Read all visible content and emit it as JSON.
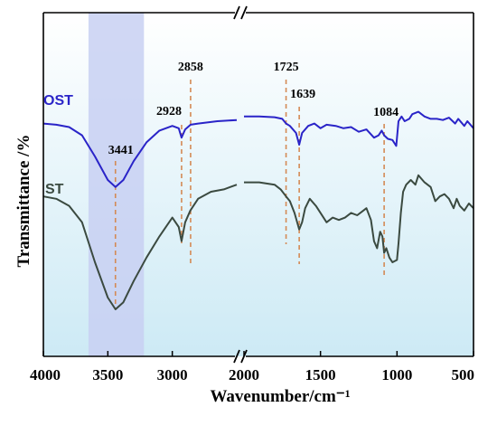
{
  "chart_data": {
    "type": "line",
    "xlabel": "Wavenumber/cm⁻¹",
    "ylabel": "Transmittance /%",
    "x_ticks": [
      4000,
      3500,
      3000,
      2000,
      1500,
      1000,
      500
    ],
    "x_segments": [
      {
        "from": 4000,
        "to": 2500
      },
      {
        "from": 2000,
        "to": 500
      }
    ],
    "axis_break": "between 2500 and 2000",
    "y_ticks": "none",
    "grid": false,
    "highlight_band": {
      "from": 3650,
      "to": 3220,
      "color": "#c8d0f2"
    },
    "background_gradient": {
      "top": "#ffffff",
      "bottom": "#cdeaf5"
    },
    "colors": {
      "OST": "#2a24c8",
      "ST": "#3b4a40",
      "peak_line": "#d48a55"
    },
    "peaks": [
      {
        "x": 3441,
        "label": "3441"
      },
      {
        "x": 2928,
        "label": "2928"
      },
      {
        "x": 2858,
        "label": "2858"
      },
      {
        "x": 1725,
        "label": "1725"
      },
      {
        "x": 1639,
        "label": "1639"
      },
      {
        "x": 1084,
        "label": "1084"
      }
    ],
    "series": [
      {
        "name": "OST",
        "label": "OST",
        "points": [
          [
            4000,
            16
          ],
          [
            3900,
            16.5
          ],
          [
            3800,
            17.5
          ],
          [
            3700,
            21
          ],
          [
            3600,
            30
          ],
          [
            3500,
            40
          ],
          [
            3441,
            43
          ],
          [
            3380,
            40
          ],
          [
            3300,
            32
          ],
          [
            3200,
            24
          ],
          [
            3100,
            19
          ],
          [
            3000,
            17
          ],
          [
            2950,
            18
          ],
          [
            2928,
            22
          ],
          [
            2900,
            18.5
          ],
          [
            2858,
            16.5
          ],
          [
            2800,
            16
          ],
          [
            2650,
            15
          ],
          [
            2500,
            14.5
          ],
          [
            2000,
            13
          ],
          [
            1900,
            13
          ],
          [
            1800,
            13.3
          ],
          [
            1750,
            14
          ],
          [
            1725,
            16
          ],
          [
            1700,
            17
          ],
          [
            1660,
            20
          ],
          [
            1639,
            25
          ],
          [
            1620,
            20
          ],
          [
            1580,
            17
          ],
          [
            1540,
            16
          ],
          [
            1500,
            18
          ],
          [
            1460,
            16.5
          ],
          [
            1400,
            17
          ],
          [
            1350,
            18
          ],
          [
            1300,
            17.5
          ],
          [
            1250,
            19.5
          ],
          [
            1200,
            18.5
          ],
          [
            1150,
            22
          ],
          [
            1120,
            21
          ],
          [
            1100,
            19
          ],
          [
            1084,
            21
          ],
          [
            1060,
            22.5
          ],
          [
            1030,
            23
          ],
          [
            1005,
            25.5
          ],
          [
            990,
            15
          ],
          [
            970,
            13
          ],
          [
            950,
            15
          ],
          [
            920,
            14
          ],
          [
            900,
            12
          ],
          [
            860,
            11
          ],
          [
            820,
            13
          ],
          [
            780,
            14
          ],
          [
            740,
            14
          ],
          [
            700,
            14.5
          ],
          [
            660,
            13.5
          ],
          [
            620,
            16
          ],
          [
            600,
            14
          ],
          [
            560,
            17
          ],
          [
            540,
            15
          ],
          [
            500,
            18
          ]
        ]
      },
      {
        "name": "ST",
        "label": "ST",
        "points": [
          [
            4000,
            47
          ],
          [
            3900,
            48
          ],
          [
            3800,
            51
          ],
          [
            3700,
            58
          ],
          [
            3600,
            75
          ],
          [
            3500,
            90
          ],
          [
            3441,
            95
          ],
          [
            3380,
            92
          ],
          [
            3300,
            83
          ],
          [
            3200,
            73
          ],
          [
            3100,
            64
          ],
          [
            3000,
            56
          ],
          [
            2950,
            60
          ],
          [
            2928,
            66
          ],
          [
            2900,
            58
          ],
          [
            2860,
            53
          ],
          [
            2800,
            48
          ],
          [
            2700,
            45
          ],
          [
            2600,
            44
          ],
          [
            2500,
            42
          ],
          [
            2000,
            41
          ],
          [
            1900,
            41
          ],
          [
            1800,
            42
          ],
          [
            1760,
            44
          ],
          [
            1725,
            47
          ],
          [
            1700,
            49
          ],
          [
            1670,
            54
          ],
          [
            1639,
            61
          ],
          [
            1620,
            58
          ],
          [
            1600,
            52
          ],
          [
            1570,
            48
          ],
          [
            1530,
            51
          ],
          [
            1500,
            54
          ],
          [
            1460,
            58
          ],
          [
            1420,
            56
          ],
          [
            1380,
            57
          ],
          [
            1340,
            56
          ],
          [
            1300,
            54
          ],
          [
            1260,
            55
          ],
          [
            1220,
            53
          ],
          [
            1200,
            52
          ],
          [
            1170,
            57
          ],
          [
            1150,
            66
          ],
          [
            1130,
            69
          ],
          [
            1110,
            62
          ],
          [
            1095,
            64
          ],
          [
            1084,
            71
          ],
          [
            1070,
            69
          ],
          [
            1050,
            73
          ],
          [
            1030,
            75
          ],
          [
            1000,
            74
          ],
          [
            990,
            67
          ],
          [
            975,
            54
          ],
          [
            960,
            45
          ],
          [
            940,
            42
          ],
          [
            910,
            40
          ],
          [
            880,
            42
          ],
          [
            860,
            38
          ],
          [
            820,
            41
          ],
          [
            780,
            43
          ],
          [
            750,
            49
          ],
          [
            720,
            47
          ],
          [
            690,
            46
          ],
          [
            660,
            48
          ],
          [
            630,
            52
          ],
          [
            610,
            48
          ],
          [
            590,
            51
          ],
          [
            560,
            53
          ],
          [
            530,
            50
          ],
          [
            500,
            52
          ]
        ]
      }
    ]
  }
}
